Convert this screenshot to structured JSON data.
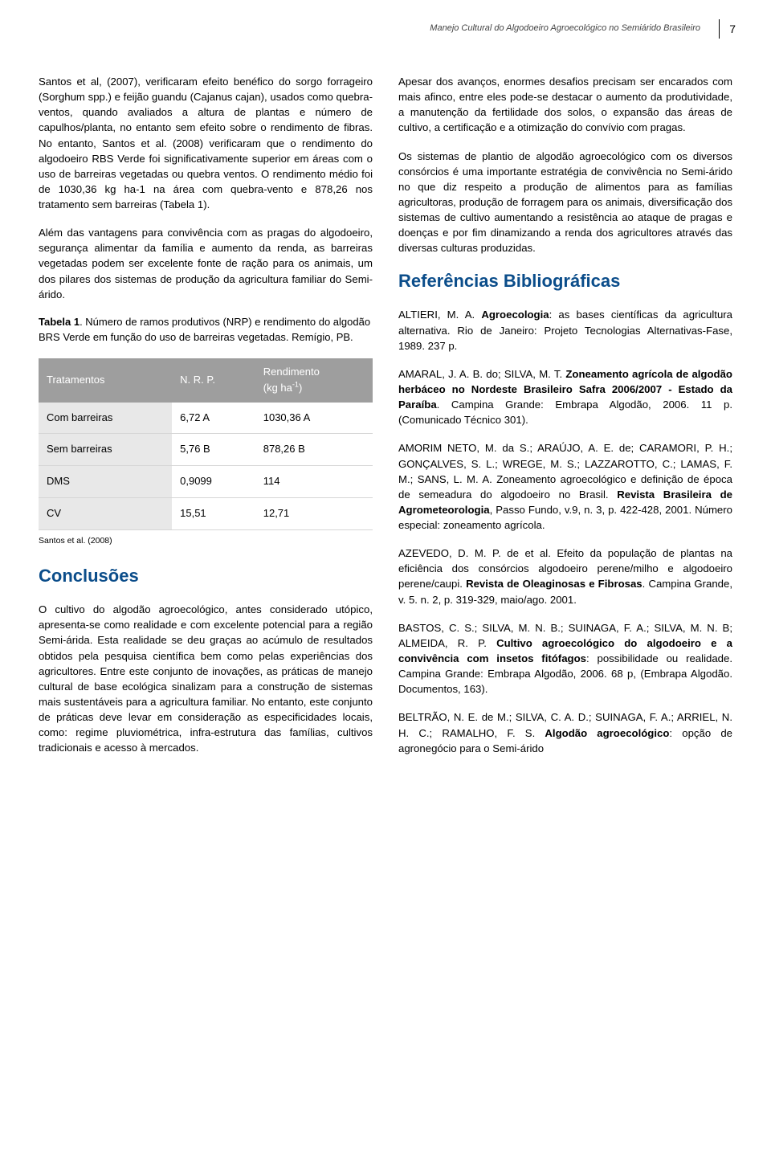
{
  "colors": {
    "heading": "#0b4d8a",
    "table_header_bg": "#9e9e9e",
    "table_header_text": "#ffffff",
    "table_label_bg": "#e8e8e8",
    "table_border": "#d6d6d6",
    "body_text": "#000000",
    "running_head_text": "#444444",
    "background": "#ffffff"
  },
  "typography": {
    "body_family": "Arial, Helvetica, sans-serif",
    "body_size_pt": 10,
    "heading_size_pt": 16
  },
  "header": {
    "running_title": "Manejo Cultural do Algodoeiro Agroecológico no Semiárido Brasileiro",
    "page_number": "7"
  },
  "left_column": {
    "p1": "Santos et al, (2007), verificaram efeito benéfico do sorgo forrageiro (Sorghum spp.) e feijão guandu (Cajanus cajan), usados como quebra-ventos, quando avaliados a altura de plantas e número de capulhos/planta, no entanto sem efeito sobre o rendimento de fibras. No entanto, Santos et al. (2008) verificaram que o rendimento do algodoeiro RBS Verde foi significativamente superior em áreas com o uso de barreiras vegetadas ou quebra ventos. O rendimento médio foi de 1030,36 kg ha-1 na área com quebra-vento e 878,26 nos tratamento sem barreiras (Tabela 1).",
    "p2": "Além das vantagens para convivência com as pragas do algodoeiro, segurança alimentar da família e aumento da renda, as barreiras vegetadas podem ser excelente fonte de ração para os animais, um dos pilares dos sistemas de produção da agricultura familiar do Semi-árido.",
    "table_caption_lead": "Tabela 1",
    "table_caption_rest": ". Número de ramos produtivos (NRP) e rendimento do algodão BRS Verde em função do uso de barreiras vegetadas. Remígio, PB.",
    "table": {
      "columns": [
        "Tratamentos",
        "N. R. P.",
        "Rendimento (kg ha⁻¹)"
      ],
      "col3_line1": "Rendimento",
      "col3_line2": "(kg ha⁻¹)",
      "rows": [
        [
          "Com barreiras",
          "6,72 A",
          "1030,36 A"
        ],
        [
          "Sem barreiras",
          "5,76 B",
          "878,26 B"
        ],
        [
          "DMS",
          "0,9099",
          "114"
        ],
        [
          "CV",
          "15,51",
          "12,71"
        ]
      ],
      "header_bg": "#9e9e9e",
      "header_color": "#ffffff",
      "label_bg": "#e8e8e8",
      "border_color": "#d6d6d6"
    },
    "table_source": "Santos et al. (2008)",
    "section_title": "Conclusões",
    "p3": "O cultivo do algodão agroecológico, antes considerado utópico, apresenta-se como realidade e com excelente potencial para a região Semi-árida. Esta realidade se deu graças ao acúmulo de resultados obtidos pela pesquisa científica bem como pelas experiências dos agricultores. Entre este conjunto de inovações, as práticas de manejo cultural de base ecológica  sinalizam para a construção de sistemas mais sustentáveis para a agricultura familiar. No entanto, este conjunto de práticas deve levar em consideração as especificidades locais, como: regime pluviométrica, infra-estrutura das famílias, cultivos tradicionais e acesso à mercados."
  },
  "right_column": {
    "p1": "Apesar dos avanços, enormes desafios precisam ser encarados com mais afinco, entre eles pode-se destacar o aumento da produtividade, a manutenção da fertilidade dos solos, o expansão das áreas de cultivo, a certificação e a otimização do convívio com pragas.",
    "p2": "Os sistemas de plantio de algodão agroecológico com os diversos consórcios é uma importante estratégia de convivência no Semi-árido no que diz respeito a produção de alimentos para as famílias agricultoras, produção de forragem para os animais, diversificação dos sistemas de cultivo aumentando a resistência ao ataque de pragas e doenças e por fim dinamizando a renda dos agricultores através das diversas culturas produzidas.",
    "section_title": "Referências  Bibliográficas",
    "refs": [
      {
        "plain_pre": "ALTIERI, M. A. ",
        "bold": "Agroecologia",
        "plain_post": ": as bases científicas da agricultura alternativa. Rio de Janeiro: Projeto Tecnologias Alternativas-Fase, 1989. 237 p."
      },
      {
        "plain_pre": "AMARAL, J. A. B. do; SILVA, M. T. ",
        "bold": "Zoneamento agrícola de algodão herbáceo no Nordeste Brasileiro Safra 2006/2007 - Estado da Paraíba",
        "plain_post": ". Campina Grande: Embrapa Algodão,  2006. 11 p. (Comunicado Técnico 301)."
      },
      {
        "plain_pre": "AMORIM NETO, M. da S.; ARAÚJO, A. E. de; CARAMORI, P. H.; GONÇALVES, S. L.; WREGE, M. S.; LAZZAROTTO, C.; LAMAS, F. M.; SANS, L. M. A. Zoneamento agroecológico e definição de época de semeadura do algodoeiro no Brasil. ",
        "bold": "Revista Brasileira de Agrometeorologia",
        "plain_post": ", Passo Fundo, v.9, n. 3, p. 422-428, 2001. Número especial: zoneamento agrícola."
      },
      {
        "plain_pre": "AZEVEDO, D. M. P. de et al. Efeito da população de plantas na eficiência dos consórcios algodoeiro perene/milho e algodoeiro perene/caupi. ",
        "bold": "Revista de Oleaginosas e Fibrosas",
        "plain_post": ". Campina Grande, v. 5. n. 2, p. 319-329, maio/ago. 2001."
      },
      {
        "plain_pre": "BASTOS, C. S.; SILVA, M. N. B.;  SUINAGA, F. A.; SILVA, M. N. B; ALMEIDA, R. P. ",
        "bold": "Cultivo agroecológico do algodoeiro e a convivência com insetos fitófagos",
        "plain_post": ": possibilidade ou realidade. Campina Grande: Embrapa Algodão, 2006. 68 p, (Embrapa Algodão. Documentos, 163)."
      },
      {
        "plain_pre": "BELTRÃO, N. E. de M.; SILVA, C. A. D.; SUINAGA, F. A.; ARRIEL, N. H. C.; RAMALHO, F. S. ",
        "bold": "Algodão agroecológico",
        "plain_post": ": opção de agronegócio para o Semi-árido"
      }
    ]
  }
}
